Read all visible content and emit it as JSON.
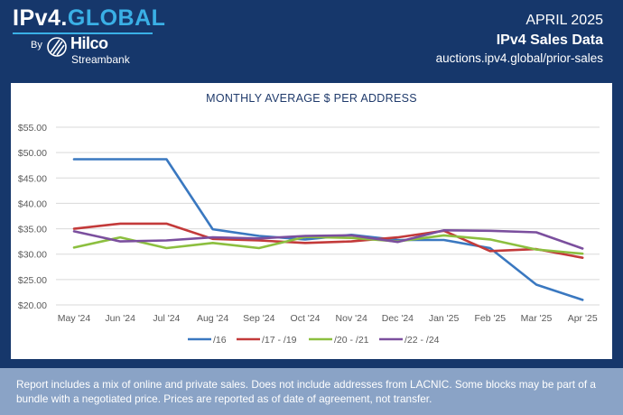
{
  "header": {
    "logo_main": "IPv4.",
    "logo_accent": "GLOBAL",
    "by": "By",
    "hilco": "Hilco",
    "streambank": "Streambank",
    "date": "APRIL 2025",
    "report_title": "IPv4 Sales Data",
    "url": "auctions.ipv4.global/prior-sales"
  },
  "footer": {
    "text": "Report includes a mix of online and private sales. Does not include addresses from LACNIC. Some blocks may be part of a bundle with a negotiated price. Prices are reported as of date of agreement, not transfer."
  },
  "colors": {
    "header_bg": "#16376b",
    "accent": "#3ab0e6",
    "footer_bg": "#8aa3c6"
  },
  "chart_data": {
    "type": "line",
    "title": "MONTHLY AVERAGE $ PER ADDRESS",
    "categories": [
      "May '24",
      "Jun '24",
      "Jul '24",
      "Aug '24",
      "Sep '24",
      "Oct '24",
      "Nov '24",
      "Dec '24",
      "Jan '25",
      "Feb '25",
      "Mar '25",
      "Apr '25"
    ],
    "y_ticks": [
      "$20.00",
      "$25.00",
      "$30.00",
      "$35.00",
      "$40.00",
      "$45.00",
      "$50.00",
      "$55.00"
    ],
    "ylim": [
      20,
      55
    ],
    "grid": true,
    "legend_position": "bottom",
    "series": [
      {
        "name": "/16",
        "color": "#3a78c0",
        "values": [
          48.7,
          48.7,
          48.7,
          34.9,
          33.6,
          32.9,
          33.8,
          32.8,
          32.8,
          31.2,
          24.0,
          21.0
        ]
      },
      {
        "name": "/17 - /19",
        "color": "#c33a3a",
        "values": [
          35.0,
          36.0,
          36.0,
          33.0,
          32.7,
          32.2,
          32.5,
          33.3,
          34.6,
          30.6,
          31.0,
          29.3
        ]
      },
      {
        "name": "/20 - /21",
        "color": "#8cbf3f",
        "values": [
          31.3,
          33.3,
          31.2,
          32.2,
          31.2,
          33.4,
          33.2,
          32.5,
          33.7,
          32.9,
          30.9,
          30.1
        ]
      },
      {
        "name": "/22 - /24",
        "color": "#7b4f9e",
        "values": [
          34.5,
          32.5,
          32.7,
          33.3,
          33.1,
          33.6,
          33.7,
          32.4,
          34.7,
          34.6,
          34.3,
          31.1
        ]
      }
    ]
  }
}
